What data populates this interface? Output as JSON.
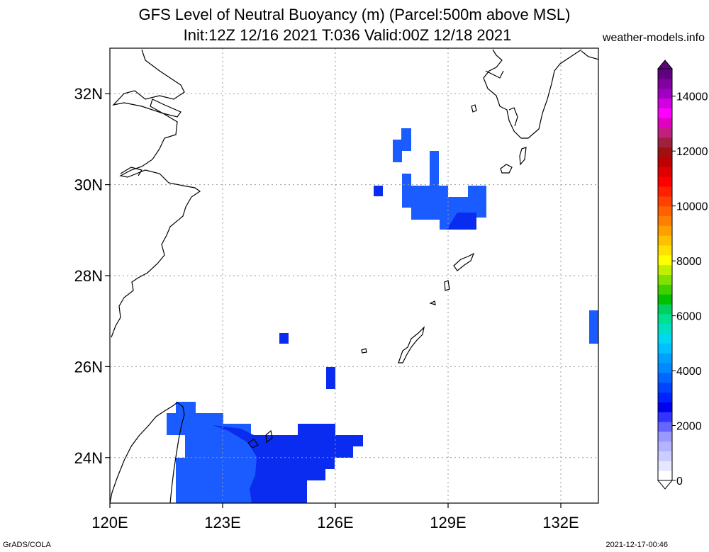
{
  "title": {
    "line1": "GFS Level of Neutral Buoyancy (m) (Parcel:500m above MSL)",
    "line2": "Init:12Z 12/16 2021 T:036 Valid:00Z 12/18 2021"
  },
  "site": "weather-models.info",
  "footer": {
    "left": "GrADS/COLA",
    "right": "2021-12-17-00:46"
  },
  "map": {
    "lon_range": [
      120,
      133
    ],
    "lat_range": [
      23,
      33
    ],
    "lon_ticks": [
      "120E",
      "123E",
      "126E",
      "129E",
      "132E"
    ],
    "lat_ticks": [
      "24N",
      "26N",
      "28N",
      "30N",
      "32N"
    ],
    "grid": "dotted"
  },
  "colorbar": {
    "labels": [
      "0",
      "2000",
      "4000",
      "6000",
      "8000",
      "10000",
      "12000",
      "14000"
    ],
    "colors": [
      "#ffffff",
      "#e6e6ff",
      "#ccccff",
      "#b3b3ff",
      "#9999ff",
      "#6666ff",
      "#3333ff",
      "#0000ee",
      "#0022ff",
      "#0044ff",
      "#0066ff",
      "#0088ff",
      "#00a0ff",
      "#00c0ff",
      "#00d8f0",
      "#00e0c0",
      "#00e090",
      "#00d060",
      "#00c000",
      "#40d000",
      "#80e000",
      "#c0f000",
      "#ffff00",
      "#ffe000",
      "#ffc000",
      "#ffa000",
      "#ff8000",
      "#ff6000",
      "#ff4000",
      "#ff2000",
      "#ff0000",
      "#e00000",
      "#c00000",
      "#a01010",
      "#a02040",
      "#c02080",
      "#e000c0",
      "#ff00ff",
      "#d000e0",
      "#a000c0",
      "#8000a0",
      "#600080"
    ]
  }
}
